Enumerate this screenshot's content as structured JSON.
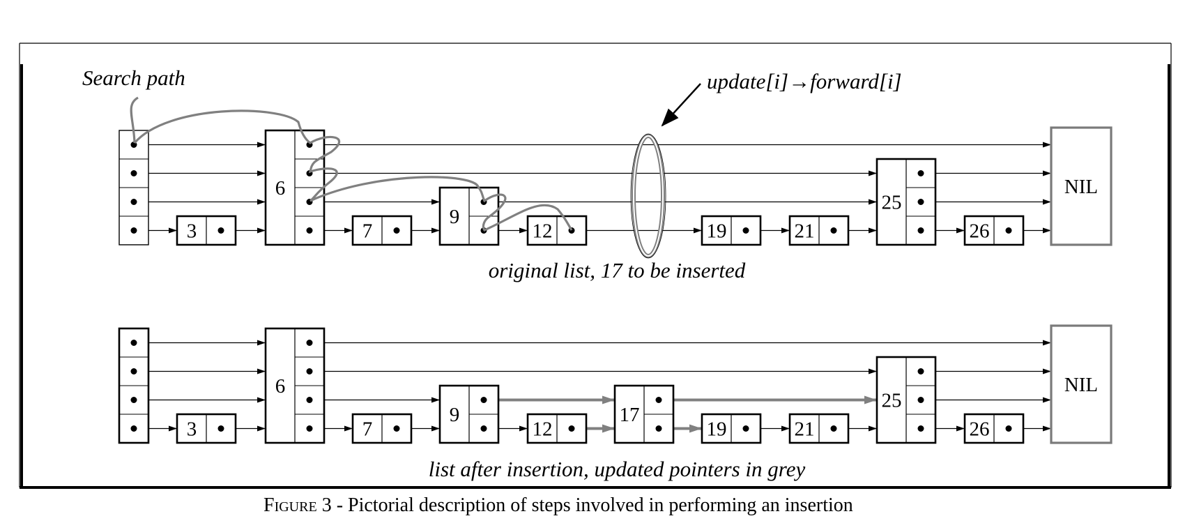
{
  "labels": {
    "search_path": "Search path",
    "update_annotation": "update[i]→forward[i]",
    "top_caption": "original list, 17 to be inserted",
    "bottom_caption": "list after insertion, updated pointers in grey",
    "figure_caption_prefix": "Figure",
    "figure_caption_rest": " 3 - Pictorial description of steps involved in performing an insertion"
  },
  "colors": {
    "ink": "#000000",
    "grey": "#808080",
    "nil_border": "#7a7a7a"
  },
  "top_list": {
    "header_levels": 4,
    "nodes": [
      {
        "key": "3",
        "levels": 1
      },
      {
        "key": "6",
        "levels": 4
      },
      {
        "key": "7",
        "levels": 1
      },
      {
        "key": "9",
        "levels": 2
      },
      {
        "key": "12",
        "levels": 1
      },
      {
        "key": "19",
        "levels": 1
      },
      {
        "key": "21",
        "levels": 1
      },
      {
        "key": "25",
        "levels": 3
      },
      {
        "key": "26",
        "levels": 1
      }
    ],
    "nil_label": "NIL"
  },
  "bottom_list": {
    "header_levels": 4,
    "nodes": [
      {
        "key": "3",
        "levels": 1
      },
      {
        "key": "6",
        "levels": 4
      },
      {
        "key": "7",
        "levels": 1
      },
      {
        "key": "9",
        "levels": 2
      },
      {
        "key": "12",
        "levels": 1
      },
      {
        "key": "17",
        "levels": 2
      },
      {
        "key": "19",
        "levels": 1
      },
      {
        "key": "21",
        "levels": 1
      },
      {
        "key": "25",
        "levels": 3
      },
      {
        "key": "26",
        "levels": 1
      }
    ],
    "nil_label": "NIL"
  }
}
